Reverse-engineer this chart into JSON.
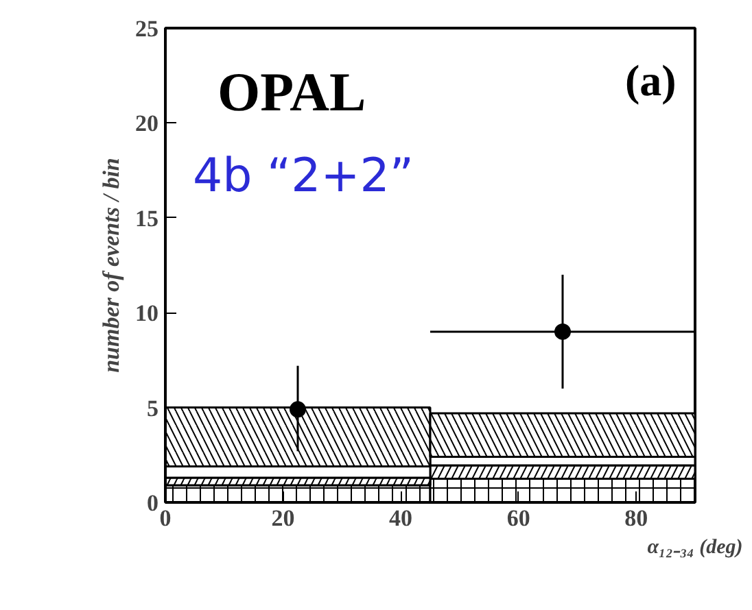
{
  "chart_data": {
    "type": "bar",
    "xlabel": "α₁₂₋₃₄ (deg)",
    "ylabel": "number of events / bin",
    "x": [
      22.5,
      67.5
    ],
    "stacked": true,
    "series": [
      {
        "color": "#000000",
        "values": [
          0.9,
          1.25
        ]
      },
      {
        "color": "#000000",
        "values": [
          0.4,
          0.7
        ]
      },
      {
        "color": "#000000",
        "values": [
          0.6,
          0.45
        ]
      },
      {
        "color": "#000000",
        "values": [
          3.1,
          2.3
        ]
      },
      {
        "type": "scatter",
        "color": "#000000",
        "x": [
          22.5,
          67.5
        ],
        "values": [
          4.9,
          9.0
        ],
        "errors": [
          [
            2.7,
            7.2
          ],
          [
            6.0,
            12.0
          ]
        ],
        "xerrors": [
          null,
          [
            45,
            90
          ]
        ]
      }
    ],
    "marker": "circle",
    "xlim": [
      0,
      90
    ],
    "ylim": [
      0,
      25
    ],
    "xticks": [
      0,
      20,
      40,
      60,
      80
    ],
    "yticks": [
      0,
      5,
      10,
      15,
      20,
      25
    ],
    "grid": false,
    "annotations": [
      "OPAL",
      "(a)",
      "4b “2+2”"
    ]
  }
}
